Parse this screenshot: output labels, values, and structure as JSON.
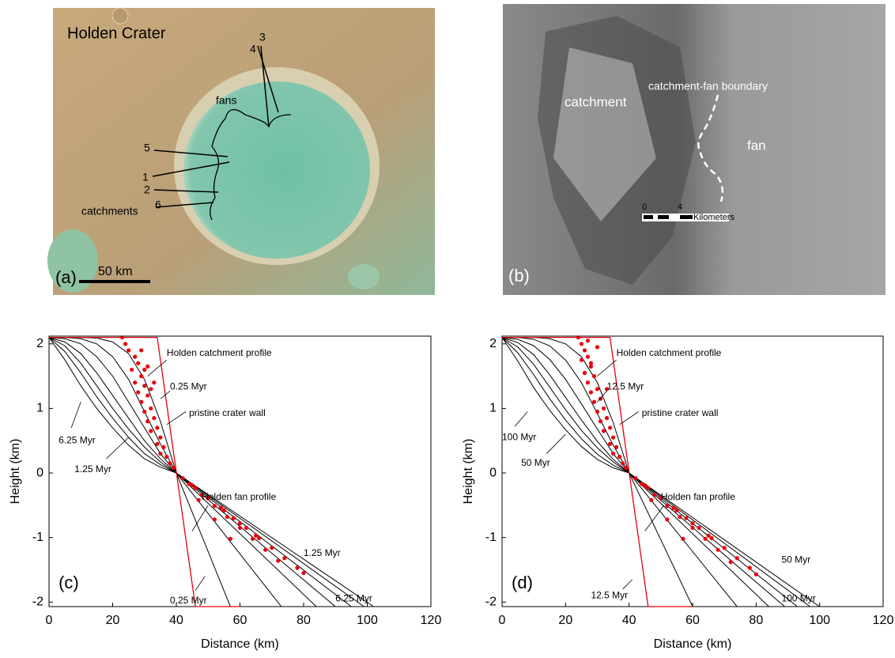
{
  "images": [
    {
      "panel": "(a)",
      "title": "Holden Crater",
      "fans": "fans",
      "catchments": "catchments",
      "scale": "50 km",
      "transects": [
        "4",
        "3",
        "5",
        "1",
        "2",
        "6"
      ]
    },
    {
      "panel": "(b)",
      "catchment": "catchment",
      "boundary": "catchment-fan boundary",
      "fan": "fan",
      "scale_ticks": [
        "0",
        "4"
      ],
      "scale_unit": "Kilometers"
    }
  ],
  "chart_data": [
    {
      "type": "line",
      "panel": "(c)",
      "xlabel": "Distance (km)",
      "ylabel": "Height (km)",
      "xlim": [
        0,
        120
      ],
      "ylim": [
        -2.07,
        2.12
      ],
      "xticks": [
        0,
        20,
        40,
        60,
        80,
        100,
        120
      ],
      "yticks": [
        -2,
        -1,
        0,
        1,
        2
      ],
      "annotations": [
        "Holden catchment profile",
        "0.25 Myr",
        "pristine crater wall",
        "6.25 Myr",
        "1.25 Myr",
        "Holden fan profile",
        "1.25 Myr",
        "6.25 Myr",
        "0.25 Myr"
      ],
      "series": [
        {
          "style": "line",
          "color": "#000000",
          "x": [
            0,
            5,
            10,
            15,
            20,
            25,
            30,
            35,
            40,
            57
          ],
          "values": [
            2.1,
            2.1,
            2.1,
            2.09,
            2.03,
            1.85,
            1.45,
            0.8,
            0,
            -2.07
          ]
        },
        {
          "style": "line",
          "color": "#000000",
          "x": [
            0,
            5,
            10,
            15,
            20,
            25,
            30,
            35,
            40,
            73
          ],
          "values": [
            2.1,
            2.1,
            2.08,
            2.0,
            1.8,
            1.45,
            0.95,
            0.45,
            0,
            -2.07
          ]
        },
        {
          "style": "line",
          "color": "#000000",
          "x": [
            0,
            5,
            10,
            15,
            20,
            25,
            30,
            35,
            40,
            84
          ],
          "values": [
            2.1,
            2.08,
            2.0,
            1.8,
            1.5,
            1.1,
            0.7,
            0.3,
            0,
            -2.07
          ]
        },
        {
          "style": "line",
          "color": "#000000",
          "x": [
            0,
            5,
            10,
            15,
            20,
            25,
            30,
            35,
            40,
            90
          ],
          "values": [
            2.1,
            2.03,
            1.85,
            1.55,
            1.2,
            0.85,
            0.5,
            0.22,
            0,
            -2.07
          ]
        },
        {
          "style": "line",
          "color": "#000000",
          "x": [
            0,
            5,
            10,
            15,
            20,
            25,
            30,
            35,
            40,
            95
          ],
          "values": [
            2.1,
            1.97,
            1.7,
            1.35,
            1.0,
            0.68,
            0.4,
            0.17,
            0,
            -2.07
          ]
        },
        {
          "style": "line",
          "color": "#000000",
          "x": [
            0,
            5,
            10,
            15,
            20,
            25,
            30,
            35,
            40,
            99
          ],
          "values": [
            2.1,
            1.88,
            1.55,
            1.18,
            0.85,
            0.55,
            0.3,
            0.13,
            0,
            -2.07
          ]
        },
        {
          "style": "line",
          "color": "#000000",
          "x": [
            0,
            5,
            10,
            15,
            20,
            25,
            30,
            35,
            40,
            102
          ],
          "values": [
            2.1,
            1.75,
            1.35,
            1.0,
            0.7,
            0.43,
            0.22,
            0.09,
            0,
            -2.07
          ]
        },
        {
          "style": "line",
          "color": "#000000",
          "x": [
            57,
            115
          ],
          "values": [
            -2.07,
            -2.07
          ]
        },
        {
          "style": "line",
          "color": "#e8000b",
          "x": [
            0,
            34,
            46,
            60
          ],
          "values": [
            2.1,
            2.1,
            -2.07,
            -2.07
          ]
        },
        {
          "style": "markers",
          "color": "#e8000b",
          "x": [
            23,
            24,
            25,
            27,
            28,
            26,
            29,
            27,
            30,
            28,
            31,
            29,
            32,
            30,
            33,
            31,
            34,
            32,
            35,
            34,
            36,
            35,
            37,
            38,
            39,
            30,
            33,
            31,
            32,
            29
          ],
          "values": [
            2.1,
            2.0,
            1.9,
            1.8,
            1.7,
            1.6,
            1.5,
            1.4,
            1.35,
            1.25,
            1.2,
            1.1,
            1.0,
            0.95,
            0.85,
            0.8,
            0.7,
            0.65,
            0.55,
            0.45,
            0.4,
            0.3,
            0.25,
            0.15,
            0.08,
            1.6,
            1.4,
            1.65,
            1.3,
            1.9
          ]
        },
        {
          "style": "markers",
          "color": "#e8000b",
          "x": [
            42,
            46,
            50,
            54,
            58,
            62,
            66,
            70,
            74,
            78,
            80,
            44,
            48,
            52,
            56,
            60,
            64,
            68,
            72,
            45,
            50,
            55,
            60,
            65,
            47,
            52,
            57
          ],
          "values": [
            -0.08,
            -0.23,
            -0.39,
            -0.54,
            -0.7,
            -0.85,
            -1.01,
            -1.16,
            -1.32,
            -1.47,
            -1.55,
            -0.17,
            -0.34,
            -0.51,
            -0.68,
            -0.85,
            -1.02,
            -1.19,
            -1.36,
            -0.19,
            -0.39,
            -0.58,
            -0.78,
            -0.97,
            -0.42,
            -0.72,
            -1.02
          ]
        }
      ]
    },
    {
      "type": "line",
      "panel": "(d)",
      "xlabel": "Distance (km)",
      "ylabel": "Height (km)",
      "xlim": [
        0,
        120
      ],
      "ylim": [
        -2.07,
        2.12
      ],
      "xticks": [
        0,
        20,
        40,
        60,
        80,
        100,
        120
      ],
      "yticks": [
        -2,
        -1,
        0,
        1,
        2
      ],
      "annotations": [
        "Holden catchment profile",
        "12.5 Myr",
        "pristine crater wall",
        "100 Myr",
        "50 Myr",
        "Holden fan profile",
        "50 Myr",
        "100 Myr",
        "12.5 Myr"
      ],
      "series": [
        {
          "style": "line",
          "color": "#000000",
          "x": [
            0,
            5,
            10,
            15,
            20,
            25,
            30,
            35,
            40,
            60
          ],
          "values": [
            2.1,
            2.1,
            2.1,
            2.08,
            2.0,
            1.8,
            1.4,
            0.78,
            0,
            -2.07
          ]
        },
        {
          "style": "line",
          "color": "#000000",
          "x": [
            0,
            5,
            10,
            15,
            20,
            25,
            30,
            35,
            40,
            74
          ],
          "values": [
            2.1,
            2.1,
            2.07,
            1.97,
            1.75,
            1.4,
            0.92,
            0.43,
            0,
            -2.07
          ]
        },
        {
          "style": "line",
          "color": "#000000",
          "x": [
            0,
            5,
            10,
            15,
            20,
            25,
            30,
            35,
            40,
            84
          ],
          "values": [
            2.1,
            2.07,
            1.97,
            1.76,
            1.45,
            1.07,
            0.68,
            0.3,
            0,
            -2.07
          ]
        },
        {
          "style": "line",
          "color": "#000000",
          "x": [
            0,
            5,
            10,
            15,
            20,
            25,
            30,
            35,
            40,
            89
          ],
          "values": [
            2.1,
            2.02,
            1.83,
            1.52,
            1.17,
            0.82,
            0.49,
            0.21,
            0,
            -2.07
          ]
        },
        {
          "style": "line",
          "color": "#000000",
          "x": [
            0,
            5,
            10,
            15,
            20,
            25,
            30,
            35,
            40,
            93
          ],
          "values": [
            2.1,
            1.95,
            1.68,
            1.33,
            0.98,
            0.66,
            0.39,
            0.17,
            0,
            -2.07
          ]
        },
        {
          "style": "line",
          "color": "#000000",
          "x": [
            0,
            5,
            10,
            15,
            20,
            25,
            30,
            35,
            40,
            97
          ],
          "values": [
            2.1,
            1.86,
            1.52,
            1.15,
            0.82,
            0.53,
            0.29,
            0.12,
            0,
            -2.07
          ]
        },
        {
          "style": "line",
          "color": "#000000",
          "x": [
            0,
            5,
            10,
            15,
            20,
            25,
            30,
            35,
            40,
            100
          ],
          "values": [
            2.1,
            1.73,
            1.32,
            0.97,
            0.67,
            0.41,
            0.21,
            0.08,
            0,
            -2.07
          ]
        },
        {
          "style": "line",
          "color": "#000000",
          "x": [
            60,
            115
          ],
          "values": [
            -2.07,
            -2.07
          ]
        },
        {
          "style": "line",
          "color": "#e8000b",
          "x": [
            0,
            34,
            46,
            60
          ],
          "values": [
            2.1,
            2.1,
            -2.07,
            -2.07
          ]
        },
        {
          "style": "markers",
          "color": "#e8000b",
          "x": [
            24,
            25,
            26,
            27,
            28,
            26,
            29,
            27,
            30,
            28,
            31,
            29,
            32,
            30,
            33,
            31,
            34,
            32,
            35,
            34,
            36,
            35,
            37,
            38,
            39,
            27,
            30,
            28,
            33,
            25
          ],
          "values": [
            2.1,
            2.0,
            1.9,
            1.8,
            1.7,
            1.55,
            1.5,
            1.4,
            1.3,
            1.25,
            1.15,
            1.1,
            1.0,
            0.95,
            0.85,
            0.8,
            0.7,
            0.65,
            0.55,
            0.45,
            0.4,
            0.3,
            0.25,
            0.15,
            0.08,
            2.05,
            1.95,
            1.65,
            1.3,
            1.75
          ]
        },
        {
          "style": "markers",
          "color": "#e8000b",
          "x": [
            42,
            46,
            50,
            54,
            58,
            62,
            66,
            70,
            74,
            78,
            80,
            44,
            48,
            52,
            56,
            60,
            64,
            68,
            72,
            45,
            50,
            55,
            60,
            65,
            47,
            52,
            57
          ],
          "values": [
            -0.08,
            -0.23,
            -0.39,
            -0.54,
            -0.7,
            -0.85,
            -1.01,
            -1.16,
            -1.32,
            -1.47,
            -1.57,
            -0.17,
            -0.34,
            -0.51,
            -0.68,
            -0.85,
            -1.02,
            -1.19,
            -1.38,
            -0.19,
            -0.39,
            -0.58,
            -0.78,
            -0.97,
            -0.42,
            -0.72,
            -1.02
          ]
        }
      ]
    }
  ]
}
